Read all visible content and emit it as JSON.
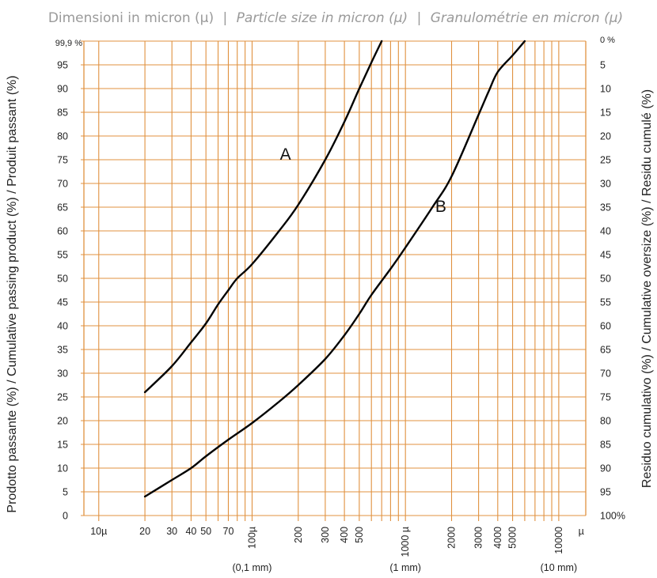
{
  "chart_data": {
    "type": "line",
    "x_scale": "log",
    "title_parts": [
      "Dimensioni in micron (µ)",
      "|",
      "Particle size in micron (µ)",
      "|",
      "Granulométrie en micron (µ)"
    ],
    "ylabel_left": "Prodotto passante (%) / Cumulative passing product (%) / Produit passant (%)",
    "ylabel_right": "Residuo cumulativo (%) / Cumulative oversize (%) / Residu cumulé (%)",
    "xlim": [
      8,
      15000
    ],
    "ylim": [
      0,
      100
    ],
    "grid": true,
    "grid_color": "#e0913f",
    "curve_color": "#000000",
    "x_grid_values": [
      10,
      20,
      30,
      40,
      50,
      60,
      70,
      80,
      90,
      100,
      200,
      300,
      400,
      500,
      600,
      700,
      800,
      900,
      1000,
      2000,
      3000,
      4000,
      5000,
      6000,
      7000,
      8000,
      9000,
      10000
    ],
    "x_ticks": [
      {
        "value": 10,
        "label": "10µ",
        "rotated": false
      },
      {
        "value": 20,
        "label": "20",
        "rotated": false
      },
      {
        "value": 30,
        "label": "30",
        "rotated": false
      },
      {
        "value": 40,
        "label": "40",
        "rotated": false
      },
      {
        "value": 50,
        "label": "50",
        "rotated": false
      },
      {
        "value": 70,
        "label": "70",
        "rotated": false
      },
      {
        "value": 100,
        "label": "100µ",
        "rotated": true
      },
      {
        "value": 200,
        "label": "200",
        "rotated": true
      },
      {
        "value": 300,
        "label": "300",
        "rotated": true
      },
      {
        "value": 400,
        "label": "400",
        "rotated": true
      },
      {
        "value": 500,
        "label": "500",
        "rotated": true
      },
      {
        "value": 1000,
        "label": "1000 µ",
        "rotated": true
      },
      {
        "value": 2000,
        "label": "2000",
        "rotated": true
      },
      {
        "value": 3000,
        "label": "3000",
        "rotated": true
      },
      {
        "value": 4000,
        "label": "4000",
        "rotated": true
      },
      {
        "value": 5000,
        "label": "5000",
        "rotated": true
      },
      {
        "value": 10000,
        "label": "10000",
        "rotated": true
      },
      {
        "value": 14000,
        "label": "µ",
        "rotated": false
      }
    ],
    "x_subnotes": [
      {
        "value": 100,
        "label": "(0,1 mm)"
      },
      {
        "value": 1000,
        "label": "(1 mm)"
      },
      {
        "value": 10000,
        "label": "(10 mm)"
      }
    ],
    "y_ticks_left": [
      {
        "value": 100,
        "label": "99,9 %"
      },
      {
        "value": 95,
        "label": "95"
      },
      {
        "value": 90,
        "label": "90"
      },
      {
        "value": 85,
        "label": "85"
      },
      {
        "value": 80,
        "label": "80"
      },
      {
        "value": 75,
        "label": "75"
      },
      {
        "value": 70,
        "label": "70"
      },
      {
        "value": 65,
        "label": "65"
      },
      {
        "value": 60,
        "label": "60"
      },
      {
        "value": 55,
        "label": "55"
      },
      {
        "value": 50,
        "label": "50"
      },
      {
        "value": 45,
        "label": "45"
      },
      {
        "value": 40,
        "label": "40"
      },
      {
        "value": 35,
        "label": "35"
      },
      {
        "value": 30,
        "label": "30"
      },
      {
        "value": 25,
        "label": "25"
      },
      {
        "value": 20,
        "label": "20"
      },
      {
        "value": 15,
        "label": "15"
      },
      {
        "value": 10,
        "label": "10"
      },
      {
        "value": 5,
        "label": "5"
      },
      {
        "value": 0,
        "label": "0"
      }
    ],
    "y_ticks_right": [
      {
        "value": 100,
        "label": "0 %"
      },
      {
        "value": 95,
        "label": "5"
      },
      {
        "value": 90,
        "label": "10"
      },
      {
        "value": 85,
        "label": "15"
      },
      {
        "value": 80,
        "label": "20"
      },
      {
        "value": 75,
        "label": "25"
      },
      {
        "value": 70,
        "label": "30"
      },
      {
        "value": 65,
        "label": "35"
      },
      {
        "value": 60,
        "label": "40"
      },
      {
        "value": 55,
        "label": "45"
      },
      {
        "value": 50,
        "label": "50"
      },
      {
        "value": 45,
        "label": "55"
      },
      {
        "value": 40,
        "label": "60"
      },
      {
        "value": 35,
        "label": "65"
      },
      {
        "value": 30,
        "label": "70"
      },
      {
        "value": 25,
        "label": "75"
      },
      {
        "value": 20,
        "label": "80"
      },
      {
        "value": 15,
        "label": "85"
      },
      {
        "value": 10,
        "label": "90"
      },
      {
        "value": 5,
        "label": "95"
      },
      {
        "value": 0,
        "label": "100%"
      }
    ],
    "series": [
      {
        "name": "A",
        "label_at": {
          "x": 165,
          "y": 75
        },
        "x": [
          20,
          30,
          40,
          50,
          60,
          70,
          80,
          100,
          150,
          200,
          300,
          400,
          500,
          600,
          700
        ],
        "y": [
          26,
          31.5,
          36.5,
          40.5,
          44.5,
          47.5,
          50,
          53,
          60,
          65.5,
          75,
          83,
          90,
          95.5,
          100
        ]
      },
      {
        "name": "B",
        "label_at": {
          "x": 1700,
          "y": 64
        },
        "x": [
          20,
          30,
          40,
          50,
          70,
          100,
          150,
          200,
          300,
          400,
          500,
          600,
          800,
          1000,
          1500,
          2000,
          3000,
          3500,
          4000,
          5000,
          6000
        ],
        "y": [
          4,
          7.5,
          10,
          12.5,
          16,
          19.5,
          24,
          27.5,
          33,
          38,
          42.5,
          46.5,
          52,
          56.5,
          65,
          71.5,
          84.5,
          89.5,
          93.5,
          97,
          100
        ]
      }
    ]
  }
}
